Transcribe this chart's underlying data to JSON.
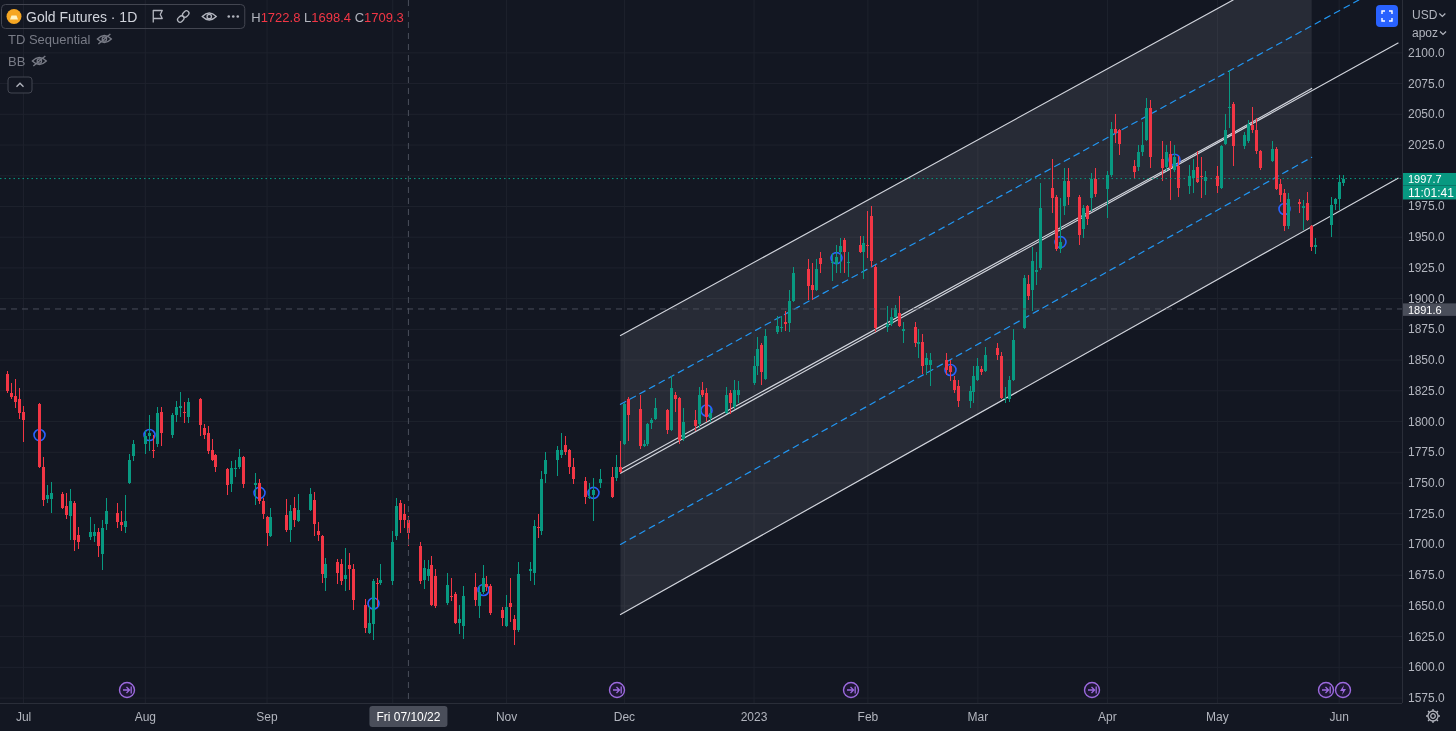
{
  "chart_data": {
    "type": "candlestick",
    "title": "Gold Futures · 1D",
    "annotations": [
      "H1722.8 L1698.4 C1709.3",
      "TD Sequential",
      "BB",
      "USD",
      "apoz",
      "11:01:41"
    ],
    "xlim": [
      "2022-06-25",
      "2023-06-17"
    ],
    "ylim": [
      1571,
      2143
    ],
    "xticks": [
      {
        "value": "2022-07-01",
        "label": "Jul"
      },
      {
        "value": "2022-08-01",
        "label": "Aug"
      },
      {
        "value": "2022-09-01",
        "label": "Sep"
      },
      {
        "value": "2022-10-03",
        "label": null
      },
      {
        "value": "2022-11-01",
        "label": "Nov"
      },
      {
        "value": "2022-12-01",
        "label": "Dec"
      },
      {
        "value": "2023-01-03",
        "label": "2023"
      },
      {
        "value": "2023-02-01",
        "label": "Feb"
      },
      {
        "value": "2023-03-01",
        "label": "Mar"
      },
      {
        "value": "2023-04-03",
        "label": "Apr"
      },
      {
        "value": "2023-05-01",
        "label": "May"
      },
      {
        "value": "2023-06-01",
        "label": "Jun"
      }
    ],
    "yticks": [
      {
        "value": 1575,
        "label": "1575.0"
      },
      {
        "value": 1600,
        "label": "1600.0"
      },
      {
        "value": 1625,
        "label": "1625.0"
      },
      {
        "value": 1650,
        "label": "1650.0"
      },
      {
        "value": 1675,
        "label": "1675.0"
      },
      {
        "value": 1700,
        "label": "1700.0"
      },
      {
        "value": 1725,
        "label": "1725.0"
      },
      {
        "value": 1750,
        "label": "1750.0"
      },
      {
        "value": 1775,
        "label": "1775.0"
      },
      {
        "value": 1800,
        "label": "1800.0"
      },
      {
        "value": 1825,
        "label": "1825.0"
      },
      {
        "value": 1850,
        "label": "1850.0"
      },
      {
        "value": 1875,
        "label": "1875.0"
      },
      {
        "value": 1900,
        "label": "1900.0"
      },
      {
        "value": 1925,
        "label": "1925.0"
      },
      {
        "value": 1950,
        "label": "1950.0"
      },
      {
        "value": 1975,
        "label": "1975.0"
      },
      {
        "value": 2000,
        "label": null
      },
      {
        "value": 2025,
        "label": "2025.0"
      },
      {
        "value": 2050,
        "label": "2050.0"
      },
      {
        "value": 2075,
        "label": "2075.0"
      },
      {
        "value": 2100,
        "label": "2100.0"
      }
    ],
    "grid": true,
    "ref_lines": [
      {
        "axis": "x",
        "value": "2022-10-07",
        "label": "Fri 07/10/22",
        "line_style": "dashed",
        "color": "#4a4e5a"
      },
      {
        "axis": "y",
        "value": 1891.6,
        "label": "1891.6",
        "line_style": "dashed",
        "color": "#4a4e5a"
      },
      {
        "axis": "y",
        "value": 1997.7,
        "label": "1997.7",
        "line_style": "dotted",
        "color": "#089981"
      }
    ],
    "series": [
      {
        "type": "line",
        "color": "#d1d4dc",
        "x": [
          "2022-11-30",
          "2023-05-05",
          "2023-05-25"
        ],
        "values": [
          1761,
          2035,
          2071
        ],
        "lower": [
          1643,
          1922,
          1959
        ],
        "upper": [
          1870,
          2143,
          2143
        ]
      },
      {
        "type": "line",
        "color": "#d1d4dc",
        "x": [
          "2022-11-30",
          "2023-05-05"
        ],
        "values": [
          1870,
          2143
        ]
      },
      {
        "type": "line",
        "color": "#d1d4dc",
        "x": [
          "2022-11-30",
          "2023-06-16"
        ],
        "values": [
          1758,
          2108
        ]
      },
      {
        "type": "line",
        "color": "#d1d4dc",
        "x": [
          "2022-11-30",
          "2023-06-16"
        ],
        "values": [
          1643,
          1998
        ]
      },
      {
        "type": "line",
        "color": "#2196f3",
        "line_style": "dashed",
        "x": [
          "2022-11-30",
          "2023-06-06"
        ],
        "values": [
          1814,
          2143
        ]
      },
      {
        "type": "line",
        "color": "#2196f3",
        "line_style": "dashed",
        "x": [
          "2022-11-30",
          "2023-05-25"
        ],
        "values": [
          1700,
          2015
        ]
      },
      {
        "type": "scatter",
        "marker": "circle",
        "color": "#2962ff",
        "x": [
          "2022-07-05",
          "2022-08-02",
          "2022-08-30",
          "2022-09-28",
          "2022-10-26",
          "2022-11-23",
          "2022-12-22",
          "2023-01-24",
          "2023-02-22",
          "2023-03-22",
          "2023-04-20",
          "2023-05-18"
        ],
        "values": [
          1789,
          1789,
          1742,
          1652,
          1663,
          1742,
          1809,
          1933,
          1842,
          1946,
          2013,
          1973
        ]
      },
      {
        "x": [
          "2022-06-27",
          "2022-06-28",
          "2022-06-29",
          "2022-06-30",
          "2022-07-01",
          "2022-07-05",
          "2022-07-06",
          "2022-07-07",
          "2022-07-08",
          "2022-07-11",
          "2022-07-12",
          "2022-07-13",
          "2022-07-14",
          "2022-07-15",
          "2022-07-18",
          "2022-07-19",
          "2022-07-20",
          "2022-07-21",
          "2022-07-22",
          "2022-07-25",
          "2022-07-26",
          "2022-07-27",
          "2022-07-28",
          "2022-07-29",
          "2022-08-01",
          "2022-08-02",
          "2022-08-03",
          "2022-08-04",
          "2022-08-05",
          "2022-08-08",
          "2022-08-09",
          "2022-08-10",
          "2022-08-11",
          "2022-08-12",
          "2022-08-15",
          "2022-08-16",
          "2022-08-17",
          "2022-08-18",
          "2022-08-19",
          "2022-08-22",
          "2022-08-23",
          "2022-08-24",
          "2022-08-25",
          "2022-08-26",
          "2022-08-29",
          "2022-08-30",
          "2022-08-31",
          "2022-09-01",
          "2022-09-02",
          "2022-09-06",
          "2022-09-07",
          "2022-09-08",
          "2022-09-09",
          "2022-09-12",
          "2022-09-13",
          "2022-09-14",
          "2022-09-15",
          "2022-09-16",
          "2022-09-19",
          "2022-09-20",
          "2022-09-21",
          "2022-09-22",
          "2022-09-23",
          "2022-09-26",
          "2022-09-27",
          "2022-09-28",
          "2022-09-29",
          "2022-09-30",
          "2022-10-03",
          "2022-10-04",
          "2022-10-05",
          "2022-10-06",
          "2022-10-07",
          "2022-10-10",
          "2022-10-11",
          "2022-10-12",
          "2022-10-13",
          "2022-10-14",
          "2022-10-17",
          "2022-10-18",
          "2022-10-19",
          "2022-10-20",
          "2022-10-21",
          "2022-10-24",
          "2022-10-25",
          "2022-10-26",
          "2022-10-27",
          "2022-10-28",
          "2022-10-31",
          "2022-11-01",
          "2022-11-02",
          "2022-11-03",
          "2022-11-04",
          "2022-11-07",
          "2022-11-08",
          "2022-11-09",
          "2022-11-10",
          "2022-11-11",
          "2022-11-14",
          "2022-11-15",
          "2022-11-16",
          "2022-11-17",
          "2022-11-18",
          "2022-11-21",
          "2022-11-22",
          "2022-11-23",
          "2022-11-25",
          "2022-11-28",
          "2022-11-29",
          "2022-11-30",
          "2022-12-01",
          "2022-12-02",
          "2022-12-05",
          "2022-12-06",
          "2022-12-07",
          "2022-12-08",
          "2022-12-09",
          "2022-12-12",
          "2022-12-13",
          "2022-12-14",
          "2022-12-15",
          "2022-12-16",
          "2022-12-19",
          "2022-12-20",
          "2022-12-21",
          "2022-12-22",
          "2022-12-23",
          "2022-12-27",
          "2022-12-28",
          "2022-12-29",
          "2022-12-30",
          "2023-01-03",
          "2023-01-04",
          "2023-01-05",
          "2023-01-06",
          "2023-01-09",
          "2023-01-10",
          "2023-01-11",
          "2023-01-12",
          "2023-01-13",
          "2023-01-17",
          "2023-01-18",
          "2023-01-19",
          "2023-01-20",
          "2023-01-23",
          "2023-01-24",
          "2023-01-25",
          "2023-01-26",
          "2023-01-27",
          "2023-01-30",
          "2023-01-31",
          "2023-02-01",
          "2023-02-02",
          "2023-02-03",
          "2023-02-06",
          "2023-02-07",
          "2023-02-08",
          "2023-02-09",
          "2023-02-10",
          "2023-02-13",
          "2023-02-14",
          "2023-02-15",
          "2023-02-16",
          "2023-02-17",
          "2023-02-21",
          "2023-02-22",
          "2023-02-23",
          "2023-02-24",
          "2023-02-27",
          "2023-02-28",
          "2023-03-01",
          "2023-03-02",
          "2023-03-03",
          "2023-03-06",
          "2023-03-07",
          "2023-03-08",
          "2023-03-09",
          "2023-03-10",
          "2023-03-13",
          "2023-03-14",
          "2023-03-15",
          "2023-03-16",
          "2023-03-17",
          "2023-03-20",
          "2023-03-21",
          "2023-03-22",
          "2023-03-23",
          "2023-03-24",
          "2023-03-27",
          "2023-03-28",
          "2023-03-29",
          "2023-03-30",
          "2023-03-31",
          "2023-04-03",
          "2023-04-04",
          "2023-04-05",
          "2023-04-06",
          "2023-04-10",
          "2023-04-11",
          "2023-04-12",
          "2023-04-13",
          "2023-04-14",
          "2023-04-17",
          "2023-04-18",
          "2023-04-19",
          "2023-04-20",
          "2023-04-21",
          "2023-04-24",
          "2023-04-25",
          "2023-04-26",
          "2023-04-27",
          "2023-04-28",
          "2023-05-01",
          "2023-05-02",
          "2023-05-03",
          "2023-05-04",
          "2023-05-05",
          "2023-05-08",
          "2023-05-09",
          "2023-05-10",
          "2023-05-11",
          "2023-05-12",
          "2023-05-15",
          "2023-05-16",
          "2023-05-17",
          "2023-05-18",
          "2023-05-19",
          "2023-05-22",
          "2023-05-23",
          "2023-05-24",
          "2023-05-25",
          "2023-05-26",
          "2023-05-30",
          "2023-05-31",
          "2023-06-01",
          "2023-06-02"
        ],
        "ohlc": [
          [
            1839,
            1841,
            1823,
            1825
          ],
          [
            1823,
            1831,
            1818,
            1820
          ],
          [
            1821,
            1835,
            1811,
            1816
          ],
          [
            1818,
            1827,
            1802,
            1807
          ],
          [
            1808,
            1813,
            1783,
            1801
          ],
          [
            1814,
            1815,
            1762,
            1763
          ],
          [
            1763,
            1771,
            1731,
            1736
          ],
          [
            1737,
            1748,
            1734,
            1740
          ],
          [
            1737,
            1751,
            1726,
            1742
          ],
          [
            1741,
            1743,
            1729,
            1730
          ],
          [
            1731,
            1742,
            1721,
            1724
          ],
          [
            1723,
            1745,
            1704,
            1735
          ],
          [
            1734,
            1735,
            1695,
            1704
          ],
          [
            1708,
            1714,
            1696,
            1702
          ],
          [
            1706,
            1722,
            1704,
            1710
          ],
          [
            1707,
            1717,
            1702,
            1710
          ],
          [
            1710,
            1713,
            1690,
            1699
          ],
          [
            1692,
            1720,
            1679,
            1713
          ],
          [
            1717,
            1738,
            1712,
            1727
          ],
          [
            1726,
            1734,
            1713,
            1718
          ],
          [
            1718,
            1727,
            1711,
            1716
          ],
          [
            1714,
            1740,
            1709,
            1719
          ],
          [
            1750,
            1774,
            1749,
            1769
          ],
          [
            1772,
            1785,
            1768,
            1782
          ],
          [
            1782,
            1793,
            1774,
            1788
          ],
          [
            1788,
            1805,
            1776,
            1791
          ],
          [
            1777,
            1789,
            1770,
            1776
          ],
          [
            1782,
            1812,
            1779,
            1807
          ],
          [
            1808,
            1812,
            1780,
            1791
          ],
          [
            1789,
            1807,
            1787,
            1805
          ],
          [
            1805,
            1817,
            1800,
            1812
          ],
          [
            1811,
            1824,
            1804,
            1813
          ],
          [
            1808,
            1816,
            1799,
            1807
          ],
          [
            1804,
            1819,
            1799,
            1816
          ],
          [
            1818,
            1819,
            1788,
            1797
          ],
          [
            1795,
            1798,
            1786,
            1789
          ],
          [
            1791,
            1796,
            1774,
            1776
          ],
          [
            1777,
            1786,
            1768,
            1769
          ],
          [
            1773,
            1774,
            1759,
            1763
          ],
          [
            1761,
            1762,
            1740,
            1748
          ],
          [
            1749,
            1768,
            1743,
            1762
          ],
          [
            1761,
            1769,
            1755,
            1762
          ],
          [
            1763,
            1778,
            1761,
            1771
          ],
          [
            1771,
            1772,
            1746,
            1749
          ],
          [
            1748,
            1758,
            1732,
            1750
          ],
          [
            1750,
            1753,
            1733,
            1735
          ],
          [
            1735,
            1738,
            1721,
            1725
          ],
          [
            1722,
            1723,
            1699,
            1709
          ],
          [
            1707,
            1730,
            1706,
            1722
          ],
          [
            1724,
            1737,
            1710,
            1712
          ],
          [
            1712,
            1732,
            1702,
            1727
          ],
          [
            1730,
            1739,
            1714,
            1720
          ],
          [
            1719,
            1741,
            1718,
            1728
          ],
          [
            1728,
            1746,
            1727,
            1741
          ],
          [
            1736,
            1743,
            1707,
            1717
          ],
          [
            1711,
            1718,
            1703,
            1708
          ],
          [
            1707,
            1708,
            1669,
            1676
          ],
          [
            1673,
            1689,
            1662,
            1684
          ],
          [
            1686,
            1688,
            1668,
            1677
          ],
          [
            1684,
            1688,
            1667,
            1670
          ],
          [
            1672,
            1697,
            1662,
            1675
          ],
          [
            1683,
            1693,
            1663,
            1680
          ],
          [
            1680,
            1684,
            1647,
            1655
          ],
          [
            1651,
            1656,
            1628,
            1632
          ],
          [
            1628,
            1650,
            1627,
            1636
          ],
          [
            1635,
            1672,
            1622,
            1670
          ],
          [
            1669,
            1673,
            1649,
            1668
          ],
          [
            1669,
            1684,
            1667,
            1671
          ],
          [
            1670,
            1711,
            1667,
            1702
          ],
          [
            1707,
            1738,
            1704,
            1731
          ],
          [
            1734,
            1736,
            1709,
            1720
          ],
          [
            1725,
            1733,
            1713,
            1720
          ],
          [
            1720,
            1722.8,
            1698.4,
            1709.3
          ],
          [
            1699,
            1702,
            1668,
            1670
          ],
          [
            1671,
            1687,
            1664,
            1681
          ],
          [
            1674,
            1687,
            1670,
            1680
          ],
          [
            1683,
            1691,
            1650,
            1651
          ],
          [
            1674,
            1680,
            1648,
            1650
          ],
          [
            1652,
            1677,
            1651,
            1667
          ],
          [
            1658,
            1673,
            1654,
            1657
          ],
          [
            1660,
            1661,
            1635,
            1636
          ],
          [
            1636,
            1651,
            1627,
            1639
          ],
          [
            1634,
            1666,
            1623,
            1658
          ],
          [
            1665,
            1677,
            1650,
            1655
          ],
          [
            1650,
            1666,
            1640,
            1661
          ],
          [
            1661,
            1683,
            1660,
            1673
          ],
          [
            1668,
            1674,
            1662,
            1665
          ],
          [
            1666,
            1668,
            1643,
            1644
          ],
          [
            1647,
            1649,
            1634,
            1640
          ],
          [
            1634,
            1659,
            1633,
            1649
          ],
          [
            1652,
            1673,
            1637,
            1649
          ],
          [
            1639,
            1643,
            1618,
            1630
          ],
          [
            1630,
            1686,
            1629,
            1676
          ],
          [
            1678,
            1686,
            1670,
            1680
          ],
          [
            1677,
            1720,
            1667,
            1715
          ],
          [
            1714,
            1725,
            1705,
            1713
          ],
          [
            1711,
            1760,
            1708,
            1753
          ],
          [
            1757,
            1775,
            1750,
            1769
          ],
          [
            1769,
            1780,
            1756,
            1777
          ],
          [
            1773,
            1791,
            1770,
            1777
          ],
          [
            1781,
            1788,
            1773,
            1775
          ],
          [
            1777,
            1778,
            1757,
            1763
          ],
          [
            1763,
            1770,
            1749,
            1753
          ],
          [
            1752,
            1755,
            1733,
            1739
          ],
          [
            1738,
            1750,
            1737,
            1739
          ],
          [
            1740,
            1754,
            1719,
            1744
          ],
          [
            1750,
            1761,
            1746,
            1753
          ],
          [
            1755,
            1763,
            1738,
            1739
          ],
          [
            1754,
            1773,
            1752,
            1763
          ],
          [
            1763,
            1784,
            1758,
            1759
          ],
          [
            1782,
            1815,
            1781,
            1814
          ],
          [
            1818,
            1820,
            1784,
            1805
          ],
          [
            1810,
            1822,
            1778,
            1780
          ],
          [
            1780,
            1785,
            1779,
            1782
          ],
          [
            1782,
            1799,
            1780,
            1798
          ],
          [
            1799,
            1803,
            1794,
            1801
          ],
          [
            1802,
            1819,
            1801,
            1811
          ],
          [
            1809,
            1810,
            1790,
            1793
          ],
          [
            1793,
            1837,
            1792,
            1827
          ],
          [
            1822,
            1824,
            1808,
            1818
          ],
          [
            1819,
            1820,
            1782,
            1785
          ],
          [
            1786,
            1811,
            1784,
            1800
          ],
          [
            1801,
            1809,
            1792,
            1796
          ],
          [
            1798,
            1828,
            1795,
            1822
          ],
          [
            1826,
            1832,
            1820,
            1822
          ],
          [
            1823,
            1827,
            1800,
            1804
          ],
          [
            1803,
            1811,
            1800,
            1807
          ],
          [
            1807,
            1828,
            1806,
            1822
          ],
          [
            1823,
            1826,
            1806,
            1815
          ],
          [
            1812,
            1834,
            1810,
            1826
          ],
          [
            1822,
            1833,
            1815,
            1826
          ],
          [
            1831,
            1853,
            1830,
            1845
          ],
          [
            1845,
            1869,
            1838,
            1859
          ],
          [
            1862,
            1864,
            1830,
            1840
          ],
          [
            1835,
            1875,
            1834,
            1870
          ],
          [
            1873,
            1886,
            1871,
            1878
          ],
          [
            1876,
            1886,
            1873,
            1877
          ],
          [
            1881,
            1890,
            1874,
            1879
          ],
          [
            1880,
            1907,
            1873,
            1898
          ],
          [
            1898,
            1926,
            1897,
            1921
          ],
          [
            1924,
            1932,
            1899,
            1910
          ],
          [
            1911,
            1929,
            1899,
            1907
          ],
          [
            1907,
            1932,
            1906,
            1924
          ],
          [
            1933,
            1938,
            1921,
            1928
          ],
          [
            1929,
            1937,
            1914,
            1930
          ],
          [
            1928,
            1944,
            1921,
            1934
          ],
          [
            1938,
            1949,
            1921,
            1943
          ],
          [
            1948,
            1949,
            1921,
            1938
          ],
          [
            1929,
            1938,
            1918,
            1930
          ],
          [
            1944,
            1951,
            1937,
            1938
          ],
          [
            1938,
            1951,
            1916,
            1945
          ],
          [
            1944,
            1971,
            1933,
            1943
          ],
          [
            1967,
            1975,
            1926,
            1931
          ],
          [
            1926,
            1927,
            1873,
            1876
          ],
          [
            1877,
            1894,
            1873,
            1879
          ],
          [
            1879,
            1892,
            1878,
            1885
          ],
          [
            1885,
            1895,
            1884,
            1892
          ],
          [
            1888,
            1902,
            1877,
            1878
          ],
          [
            1874,
            1881,
            1864,
            1875
          ],
          [
            1877,
            1881,
            1861,
            1864
          ],
          [
            1863,
            1875,
            1852,
            1865
          ],
          [
            1865,
            1871,
            1839,
            1845
          ],
          [
            1846,
            1856,
            1838,
            1852
          ],
          [
            1846,
            1856,
            1829,
            1850
          ],
          [
            1850,
            1856,
            1838,
            1842
          ],
          [
            1845,
            1850,
            1833,
            1840
          ],
          [
            1834,
            1837,
            1823,
            1826
          ],
          [
            1829,
            1834,
            1812,
            1817
          ],
          [
            1817,
            1829,
            1811,
            1825
          ],
          [
            1824,
            1845,
            1815,
            1837
          ],
          [
            1834,
            1852,
            1833,
            1845
          ],
          [
            1843,
            1845,
            1838,
            1840
          ],
          [
            1841,
            1861,
            1840,
            1854
          ],
          [
            1860,
            1864,
            1850,
            1854
          ],
          [
            1853,
            1857,
            1818,
            1819
          ],
          [
            1818,
            1828,
            1815,
            1819
          ],
          [
            1818,
            1837,
            1816,
            1834
          ],
          [
            1834,
            1875,
            1833,
            1866
          ],
          [
            1876,
            1919,
            1875,
            1917
          ],
          [
            1912,
            1919,
            1899,
            1902
          ],
          [
            1907,
            1942,
            1890,
            1931
          ],
          [
            1922,
            1938,
            1911,
            1923
          ],
          [
            1925,
            1994,
            1923,
            1974
          ],
          [
            1990,
            2014,
            1970,
            1982
          ],
          [
            1983,
            1984,
            1939,
            1940
          ],
          [
            1940,
            1982,
            1937,
            1946
          ],
          [
            1975,
            2006,
            1968,
            1996
          ],
          [
            1996,
            2006,
            1976,
            1983
          ],
          [
            1983,
            1984,
            1944,
            1952
          ],
          [
            1957,
            1976,
            1949,
            1974
          ],
          [
            1975,
            1976,
            1960,
            1965
          ],
          [
            1982,
            2002,
            1971,
            1997
          ],
          [
            1997,
            2006,
            1983,
            1985
          ],
          [
            1989,
            2004,
            1966,
            2001
          ],
          [
            2001,
            2044,
            1999,
            2038
          ],
          [
            2038,
            2050,
            2027,
            2035
          ],
          [
            2037,
            2038,
            2017,
            2026
          ],
          [
            2008,
            2013,
            1997,
            2003
          ],
          [
            2007,
            2025,
            2004,
            2019
          ],
          [
            2019,
            2044,
            2016,
            2025
          ],
          [
            2029,
            2063,
            2028,
            2055
          ],
          [
            2055,
            2062,
            2006,
            2015
          ],
          [
            2014,
            2028,
            1996,
            2006
          ],
          [
            2007,
            2025,
            2004,
            2019
          ],
          [
            2018,
            2028,
            1980,
            2006
          ],
          [
            2005,
            2025,
            2003,
            2015
          ],
          [
            2008,
            2016,
            1983,
            1990
          ],
          [
            1992,
            2009,
            1985,
            2000
          ],
          [
            1998,
            2014,
            1986,
            2005
          ],
          [
            2007,
            2020,
            1994,
            1995
          ],
          [
            2000,
            2015,
            1982,
            1999
          ],
          [
            1996,
            2004,
            1984,
            1999
          ],
          [
            2000,
            2008,
            1986,
            1992
          ],
          [
            1990,
            2025,
            1989,
            2024
          ],
          [
            2026,
            2050,
            2025,
            2037
          ],
          [
            2055,
            2086,
            2039,
            2056
          ],
          [
            2058,
            2060,
            2008,
            2024
          ],
          [
            2024,
            2036,
            2022,
            2033
          ],
          [
            2028,
            2045,
            2027,
            2042
          ],
          [
            2041,
            2056,
            2035,
            2037
          ],
          [
            2037,
            2047,
            2018,
            2020
          ],
          [
            2020,
            2021,
            2005,
            2006
          ],
          [
            2012,
            2028,
            2011,
            2022
          ],
          [
            2022,
            2023,
            1988,
            1989
          ],
          [
            1993,
            1997,
            1979,
            1984
          ],
          [
            1986,
            1989,
            1955,
            1959
          ],
          [
            1959,
            1986,
            1957,
            1981
          ],
          [
            1979,
            1981,
            1970,
            1977
          ],
          [
            1974,
            1980,
            1956,
            1975
          ],
          [
            1978,
            1987,
            1963,
            1964
          ],
          [
            1959,
            1960,
            1939,
            1942
          ],
          [
            1942,
            1949,
            1936,
            1944
          ],
          [
            1960,
            1983,
            1950,
            1976
          ],
          [
            1977,
            1982,
            1972,
            1981
          ],
          [
            1981,
            2001,
            1972,
            1995
          ],
          [
            1994,
            2001,
            1992,
            1997.7
          ]
        ],
        "colors": [
          "#f23645",
          "#f23645",
          "#f23645",
          "#f23645",
          "#f23645",
          "#f23645",
          "#f23645",
          "#089981",
          "#089981",
          "#f23645",
          "#f23645",
          "#089981",
          "#f23645",
          "#f23645",
          "#089981",
          "#089981",
          "#f23645",
          "#089981",
          "#089981",
          "#f23645",
          "#f23645",
          "#089981",
          "#089981",
          "#089981",
          "#089981",
          "#089981",
          "#f23645",
          "#089981",
          "#f23645",
          "#089981",
          "#089981",
          "#089981",
          "#f23645",
          "#089981",
          "#f23645",
          "#f23645",
          "#f23645",
          "#f23645",
          "#f23645",
          "#f23645",
          "#089981",
          "#089981",
          "#089981",
          "#f23645",
          "#089981",
          "#f23645",
          "#f23645",
          "#f23645",
          "#089981",
          "#f23645",
          "#089981",
          "#f23645",
          "#089981",
          "#089981",
          "#f23645",
          "#f23645",
          "#f23645",
          "#089981",
          "#f23645",
          "#f23645",
          "#089981",
          "#f23645",
          "#f23645",
          "#f23645",
          "#089981",
          "#089981",
          "#f23645",
          "#089981",
          "#089981",
          "#089981",
          "#f23645",
          "#f23645",
          "#f23645",
          "#f23645",
          "#089981",
          "#089981",
          "#f23645",
          "#f23645",
          "#089981",
          "#f23645",
          "#f23645",
          "#089981",
          "#089981",
          "#f23645",
          "#089981",
          "#089981",
          "#f23645",
          "#f23645",
          "#f23645",
          "#089981",
          "#f23645",
          "#f23645",
          "#089981",
          "#089981",
          "#089981",
          "#f23645",
          "#089981",
          "#089981",
          "#089981",
          "#089981",
          "#f23645",
          "#f23645",
          "#f23645",
          "#f23645",
          "#089981",
          "#089981",
          "#089981",
          "#f23645",
          "#089981",
          "#f23645",
          "#089981",
          "#f23645",
          "#f23645",
          "#089981",
          "#089981",
          "#089981",
          "#089981",
          "#f23645",
          "#089981",
          "#f23645",
          "#f23645",
          "#089981",
          "#f23645",
          "#089981",
          "#f23645",
          "#f23645",
          "#089981",
          "#089981",
          "#f23645",
          "#089981",
          "#089981",
          "#089981",
          "#089981",
          "#f23645",
          "#089981",
          "#089981",
          "#089981",
          "#f23645",
          "#089981",
          "#089981",
          "#f23645",
          "#f23645",
          "#089981",
          "#f23645",
          "#089981",
          "#089981",
          "#089981",
          "#f23645",
          "#089981",
          "#f23645",
          "#089981",
          "#f23645",
          "#f23645",
          "#f23645",
          "#089981",
          "#089981",
          "#089981",
          "#f23645",
          "#089981",
          "#f23645",
          "#089981",
          "#f23645",
          "#089981",
          "#089981",
          "#f23645",
          "#f23645",
          "#f23645",
          "#f23645",
          "#089981",
          "#089981",
          "#089981",
          "#f23645",
          "#089981",
          "#f23645",
          "#f23645",
          "#089981",
          "#089981",
          "#089981",
          "#089981",
          "#f23645",
          "#089981",
          "#089981",
          "#089981",
          "#f23645",
          "#f23645",
          "#089981",
          "#089981",
          "#f23645",
          "#f23645",
          "#089981",
          "#f23645",
          "#089981",
          "#f23645",
          "#089981",
          "#089981",
          "#f23645",
          "#f23645",
          "#f23645",
          "#089981",
          "#089981",
          "#089981",
          "#f23645",
          "#f23645",
          "#089981",
          "#f23645",
          "#089981",
          "#f23645",
          "#089981",
          "#089981",
          "#f23645",
          "#f23645",
          "#089981",
          "#f23645",
          "#089981",
          "#089981",
          "#089981",
          "#f23645",
          "#089981",
          "#089981",
          "#f23645",
          "#f23645",
          "#f23645",
          "#089981",
          "#f23645",
          "#f23645",
          "#f23645",
          "#089981",
          "#f23645",
          "#089981",
          "#f23645",
          "#f23645",
          "#089981",
          "#089981",
          "#089981",
          "#089981",
          "#089981"
        ]
      }
    ]
  }
}
